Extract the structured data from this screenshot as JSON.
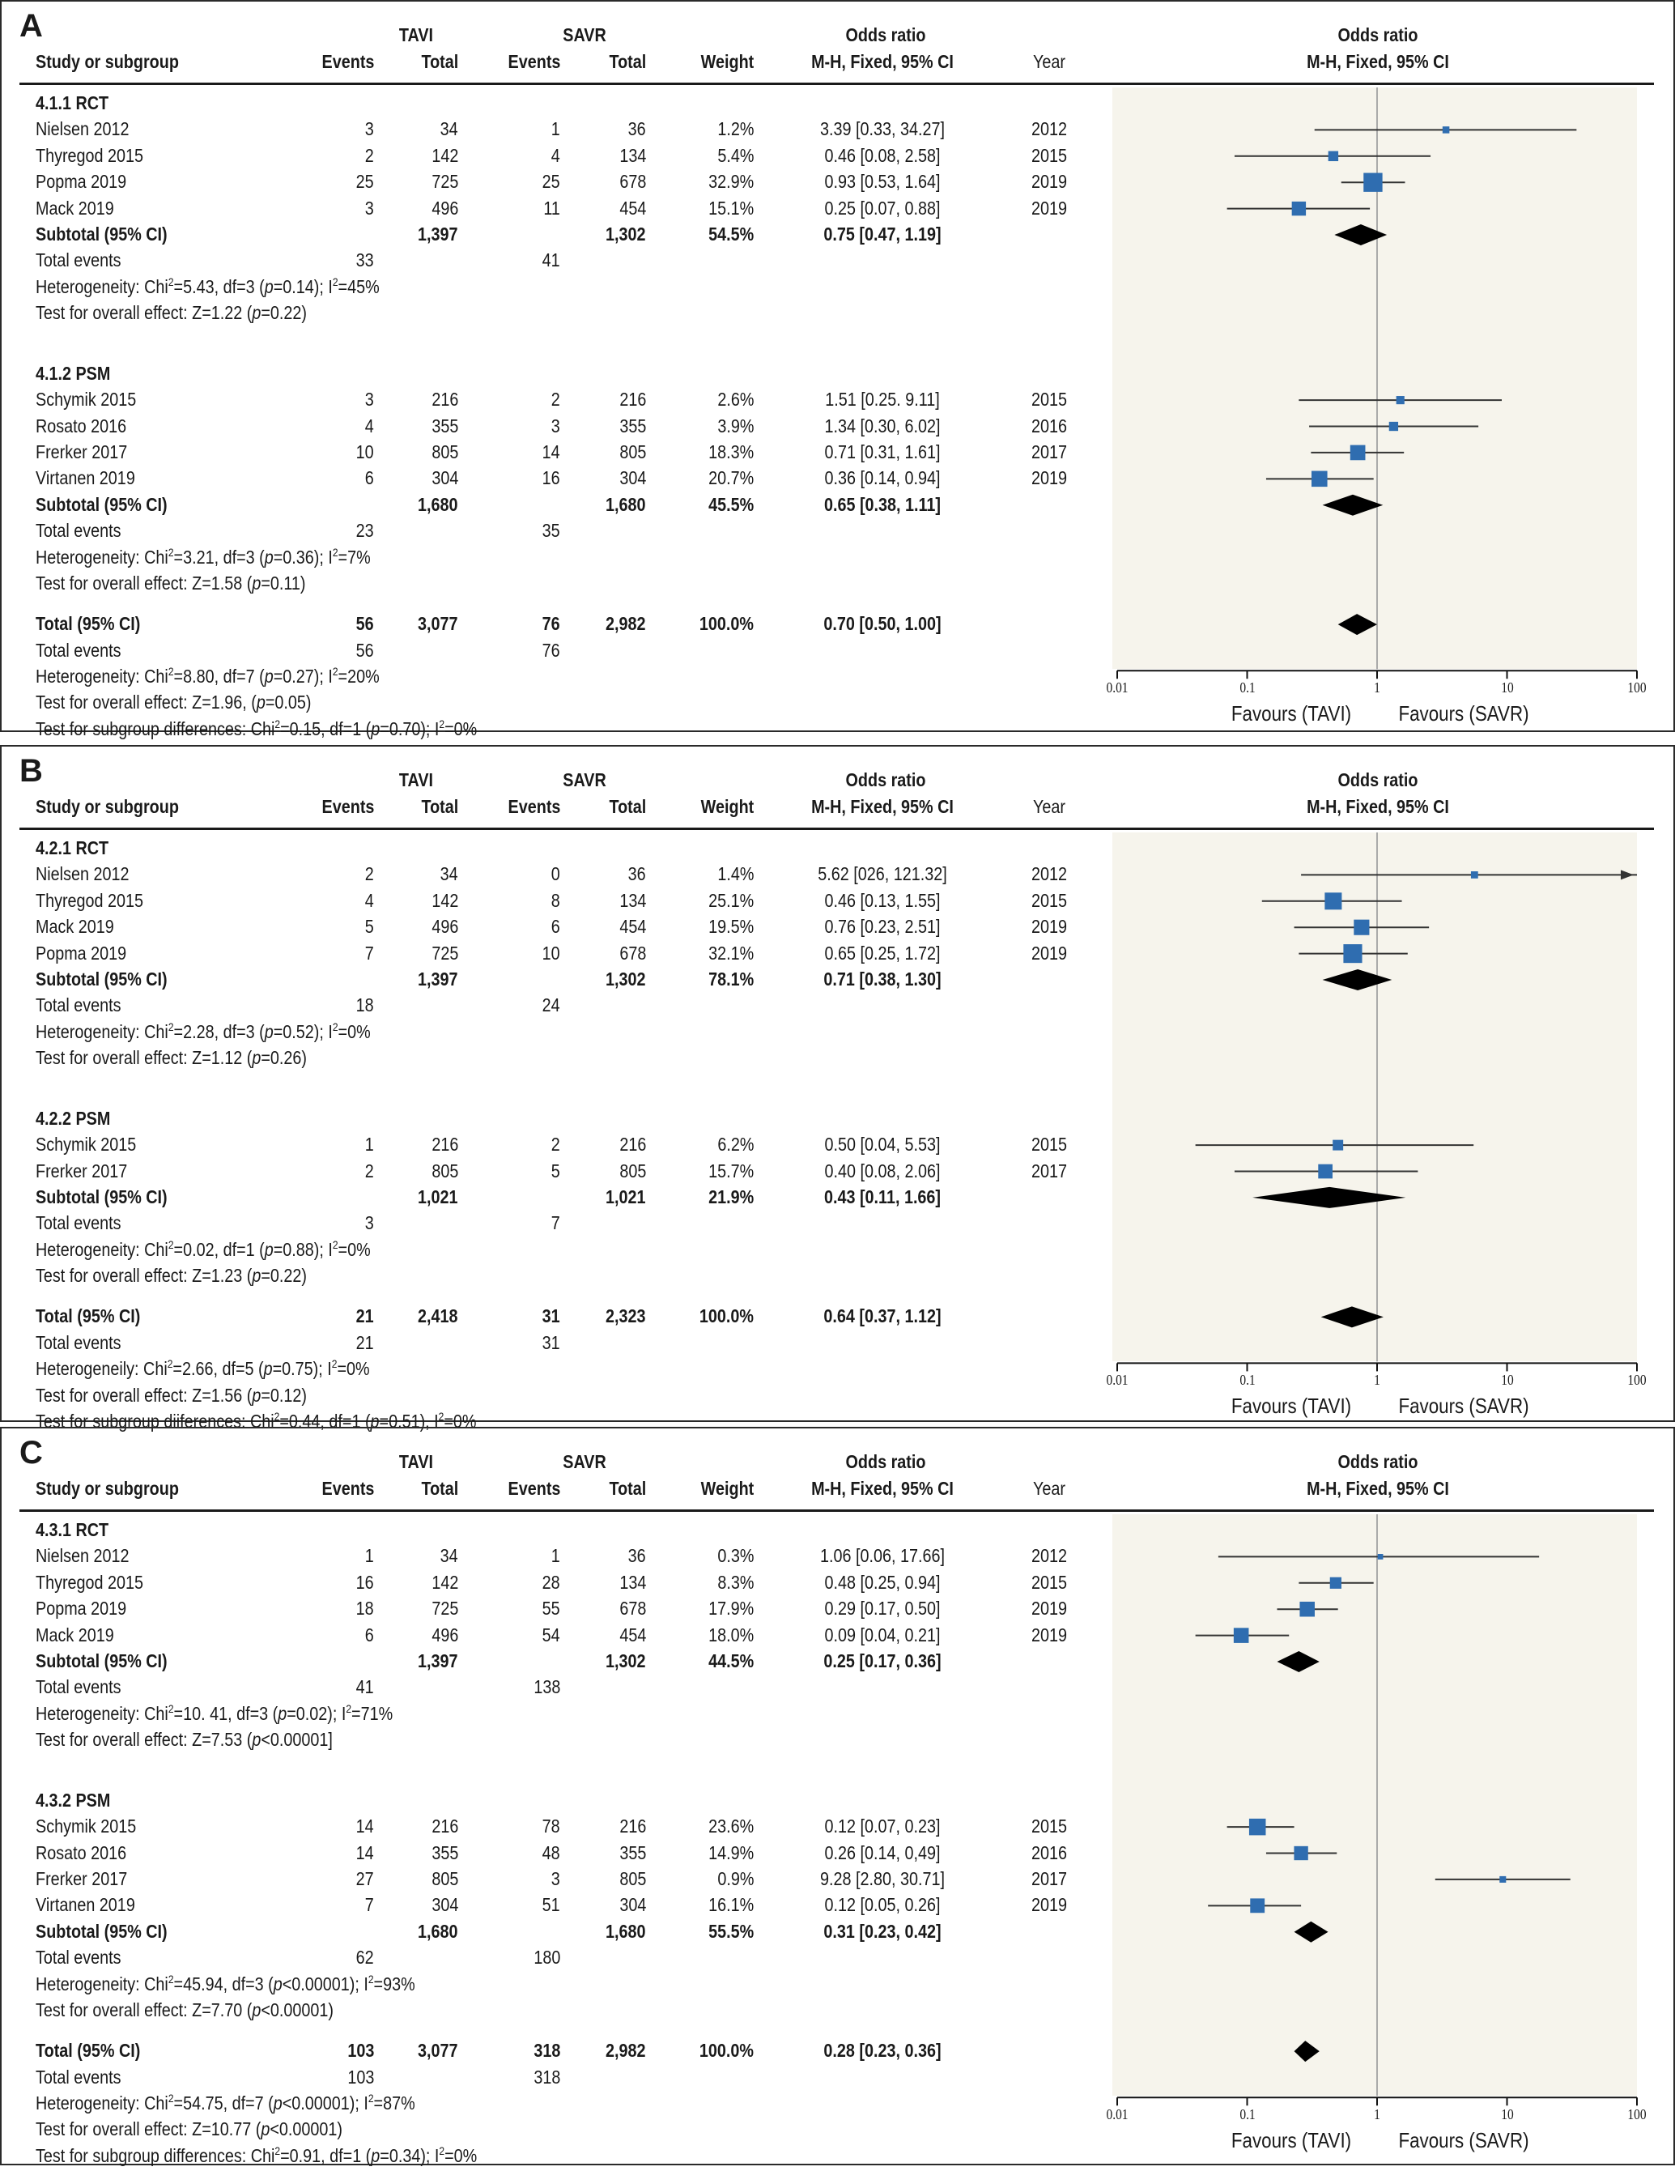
{
  "colors": {
    "square": "#2f6db0",
    "line": "#333333",
    "diamond": "#000000",
    "shade": "#f6f4ec",
    "ref": "#aaaaaa"
  },
  "headers": {
    "study": "Study or subgroup",
    "events": "Events",
    "total": "Total",
    "tavi": "TAVI",
    "savr": "SAVR",
    "weight": "Weight",
    "or1": "Odds ratio",
    "or2": "M-H, Fixed, 95% CI",
    "year": "Year",
    "plot1": "Odds ratio",
    "plot2": "M-H, Fixed, 95% CI"
  },
  "axis": {
    "ticks": [
      "0.01",
      "0.1",
      "1",
      "10",
      "100"
    ],
    "favours_left": "Favours (TAVI)",
    "favours_right": "Favours (SAVR)"
  },
  "chart_data": [
    {
      "type": "forest",
      "panel": "A",
      "xscale": "log",
      "xlim": [
        0.01,
        100
      ],
      "groups": [
        {
          "label": "4.1.1 RCT",
          "studies": [
            {
              "name": "Nielsen 2012",
              "e1": "3",
              "n1": "34",
              "e2": "1",
              "n2": "36",
              "weight": "1.2%",
              "ci": "3.39 [0.33, 34.27]",
              "year": "2012",
              "or": 3.39,
              "lo": 0.33,
              "hi": 34.27,
              "w": 1.2
            },
            {
              "name": "Thyregod 2015",
              "e1": "2",
              "n1": "142",
              "e2": "4",
              "n2": "134",
              "weight": "5.4%",
              "ci": "0.46 [0.08, 2.58]",
              "year": "2015",
              "or": 0.46,
              "lo": 0.08,
              "hi": 2.58,
              "w": 5.4
            },
            {
              "name": "Popma 2019",
              "e1": "25",
              "n1": "725",
              "e2": "25",
              "n2": "678",
              "weight": "32.9%",
              "ci": "0.93 [0.53, 1.64]",
              "year": "2019",
              "or": 0.93,
              "lo": 0.53,
              "hi": 1.64,
              "w": 32.9
            },
            {
              "name": "Mack 2019",
              "e1": "3",
              "n1": "496",
              "e2": "11",
              "n2": "454",
              "weight": "15.1%",
              "ci": "0.25 [0.07, 0.88]",
              "year": "2019",
              "or": 0.25,
              "lo": 0.07,
              "hi": 0.88,
              "w": 15.1
            }
          ],
          "subtotal": {
            "label": "Subtotal (95% CI)",
            "n1": "1,397",
            "n2": "1,302",
            "weight": "54.5%",
            "ci": "0.75 [0.47, 1.19]",
            "or": 0.75,
            "lo": 0.47,
            "hi": 1.19
          },
          "events_label": "Total events",
          "e1": "33",
          "e2": "41",
          "het": [
            "Heterogeneity: Chi",
            "2",
            "=5.43, df=3 (",
            "p",
            "=0.14); I",
            "2",
            "=45%"
          ],
          "test": [
            "Test for overall effect: Z=1.22 (",
            "p",
            "=0.22)"
          ]
        },
        {
          "label": "4.1.2 PSM",
          "studies": [
            {
              "name": "Schymik 2015",
              "e1": "3",
              "n1": "216",
              "e2": "2",
              "n2": "216",
              "weight": "2.6%",
              "ci": "1.51 [0.25. 9.11]",
              "year": "2015",
              "or": 1.51,
              "lo": 0.25,
              "hi": 9.11,
              "w": 2.6
            },
            {
              "name": "Rosato 2016",
              "e1": "4",
              "n1": "355",
              "e2": "3",
              "n2": "355",
              "weight": "3.9%",
              "ci": "1.34 [0.30, 6.02]",
              "year": "2016",
              "or": 1.34,
              "lo": 0.3,
              "hi": 6.02,
              "w": 3.9
            },
            {
              "name": "Frerker 2017",
              "e1": "10",
              "n1": "805",
              "e2": "14",
              "n2": "805",
              "weight": "18.3%",
              "ci": "0.71 [0.31, 1.61]",
              "year": "2017",
              "or": 0.71,
              "lo": 0.31,
              "hi": 1.61,
              "w": 18.3
            },
            {
              "name": "Virtanen 2019",
              "e1": "6",
              "n1": "304",
              "e2": "16",
              "n2": "304",
              "weight": "20.7%",
              "ci": "0.36 [0.14, 0.94]",
              "year": "2019",
              "or": 0.36,
              "lo": 0.14,
              "hi": 0.94,
              "w": 20.7
            }
          ],
          "subtotal": {
            "label": "Subtotal (95% CI)",
            "n1": "1,680",
            "n2": "1,680",
            "weight": "45.5%",
            "ci": "0.65 [0.38, 1.11]",
            "or": 0.65,
            "lo": 0.38,
            "hi": 1.11
          },
          "events_label": "Total events",
          "e1": "23",
          "e2": "35",
          "het": [
            "Heterogeneity: Chi",
            "2",
            "=3.21, df=3 (",
            "p",
            "=0.36); I",
            "2",
            "=7%"
          ],
          "test": [
            "Test for overall effect: Z=1.58 (",
            "p",
            "=0.11)"
          ]
        }
      ],
      "total": {
        "label": "Total (95% CI)",
        "n1": "3,077",
        "n2": "2,982",
        "weight": "100.0%",
        "ci": "0.70 [0.50, 1.00]",
        "or": 0.7,
        "lo": 0.5,
        "hi": 1.0,
        "events_label": "Total events",
        "e1": "56",
        "e2": "76",
        "het": [
          "Heterogeneity: Chi",
          "2",
          "=8.80, df=7 (",
          "p",
          "=0.27); I",
          "2",
          "=20%"
        ],
        "test": [
          "Test for overall effect: Z=1.96, (",
          "p",
          "=0.05)"
        ],
        "sub": [
          "Test for subgroup differences: Chi",
          "2",
          "=0.15, df=1 (",
          "p",
          "=0.70); I",
          "2",
          "=0%"
        ]
      }
    },
    {
      "type": "forest",
      "panel": "B",
      "xscale": "log",
      "xlim": [
        0.01,
        100
      ],
      "groups": [
        {
          "label": "4.2.1 RCT",
          "studies": [
            {
              "name": "Nielsen 2012",
              "e1": "2",
              "n1": "34",
              "e2": "0",
              "n2": "36",
              "weight": "1.4%",
              "ci": "5.62 [026, 121.32]",
              "year": "2012",
              "or": 5.62,
              "lo": 0.26,
              "hi": 121.32,
              "w": 1.4
            },
            {
              "name": "Thyregod 2015",
              "e1": "4",
              "n1": "142",
              "e2": "8",
              "n2": "134",
              "weight": "25.1%",
              "ci": "0.46 [0.13, 1.55]",
              "year": "2015",
              "or": 0.46,
              "lo": 0.13,
              "hi": 1.55,
              "w": 25.1
            },
            {
              "name": "Mack 2019",
              "e1": "5",
              "n1": "496",
              "e2": "6",
              "n2": "454",
              "weight": "19.5%",
              "ci": "0.76 [0.23, 2.51]",
              "year": "2019",
              "or": 0.76,
              "lo": 0.23,
              "hi": 2.51,
              "w": 19.5
            },
            {
              "name": "Popma 2019",
              "e1": "7",
              "n1": "725",
              "e2": "10",
              "n2": "678",
              "weight": "32.1%",
              "ci": "0.65 [0.25, 1.72]",
              "year": "2019",
              "or": 0.65,
              "lo": 0.25,
              "hi": 1.72,
              "w": 32.1
            }
          ],
          "subtotal": {
            "label": "Subtotal (95% CI)",
            "n1": "1,397",
            "n2": "1,302",
            "weight": "78.1%",
            "ci": "0.71 [0.38, 1.30]",
            "or": 0.71,
            "lo": 0.38,
            "hi": 1.3
          },
          "events_label": "Total events",
          "e1": "18",
          "e2": "24",
          "het": [
            "Heterogeneity: Chi",
            "2",
            "=2.28, df=3 (",
            "p",
            "=0.52); I",
            "2",
            "=0%"
          ],
          "test": [
            "Test for overall effect: Z=1.12 (",
            "p",
            "=0.26)"
          ]
        },
        {
          "label": "4.2.2 PSM",
          "studies": [
            {
              "name": "Schymik 2015",
              "e1": "1",
              "n1": "216",
              "e2": "2",
              "n2": "216",
              "weight": "6.2%",
              "ci": "0.50 [0.04, 5.53]",
              "year": "2015",
              "or": 0.5,
              "lo": 0.04,
              "hi": 5.53,
              "w": 6.2
            },
            {
              "name": "Frerker 2017",
              "e1": "2",
              "n1": "805",
              "e2": "5",
              "n2": "805",
              "weight": "15.7%",
              "ci": "0.40 [0.08, 2.06]",
              "year": "2017",
              "or": 0.4,
              "lo": 0.08,
              "hi": 2.06,
              "w": 15.7
            }
          ],
          "subtotal": {
            "label": "Subtotal (95% CI)",
            "n1": "1,021",
            "n2": "1,021",
            "weight": "21.9%",
            "ci": "0.43 [0.11, 1.66]",
            "or": 0.43,
            "lo": 0.11,
            "hi": 1.66
          },
          "events_label": "Total events",
          "e1": "3",
          "e2": "7",
          "het": [
            "Heterogeneity: Chi",
            "2",
            "=0.02, df=1 (",
            "p",
            "=0.88); I",
            "2",
            "=0%"
          ],
          "test": [
            "Test for overall effect: Z=1.23 (",
            "p",
            "=0.22)"
          ]
        }
      ],
      "total": {
        "label": "Total (95% CI)",
        "n1": "2,418",
        "n2": "2,323",
        "weight": "100.0%",
        "ci": "0.64 [0.37, 1.12]",
        "or": 0.64,
        "lo": 0.37,
        "hi": 1.12,
        "events_label": "Total events",
        "e1": "21",
        "e2": "31",
        "het": [
          "Heterogeneily: Chi",
          "2",
          "=2.66, df=5 (",
          "p",
          "=0.75); I",
          "2",
          "=0%"
        ],
        "test": [
          "Test for overall effect: Z=1.56 (",
          "p",
          "=0.12)"
        ],
        "sub": [
          "Test for subgroup diiferences: Chi",
          "2",
          "=0.44, df=1 (",
          "p",
          "=0.51), I",
          "2",
          "=0%"
        ]
      }
    },
    {
      "type": "forest",
      "panel": "C",
      "xscale": "log",
      "xlim": [
        0.01,
        100
      ],
      "groups": [
        {
          "label": "4.3.1 RCT",
          "studies": [
            {
              "name": "Nielsen 2012",
              "e1": "1",
              "n1": "34",
              "e2": "1",
              "n2": "36",
              "weight": "0.3%",
              "ci": "1.06 [0.06, 17.66]",
              "year": "2012",
              "or": 1.06,
              "lo": 0.06,
              "hi": 17.66,
              "w": 0.3
            },
            {
              "name": "Thyregod 2015",
              "e1": "16",
              "n1": "142",
              "e2": "28",
              "n2": "134",
              "weight": "8.3%",
              "ci": "0.48 [0.25, 0.94]",
              "year": "2015",
              "or": 0.48,
              "lo": 0.25,
              "hi": 0.94,
              "w": 8.3
            },
            {
              "name": "Popma 2019",
              "e1": "18",
              "n1": "725",
              "e2": "55",
              "n2": "678",
              "weight": "17.9%",
              "ci": "0.29 [0.17, 0.50]",
              "year": "2019",
              "or": 0.29,
              "lo": 0.17,
              "hi": 0.5,
              "w": 17.9
            },
            {
              "name": "Mack 2019",
              "e1": "6",
              "n1": "496",
              "e2": "54",
              "n2": "454",
              "weight": "18.0%",
              "ci": "0.09 [0.04, 0.21]",
              "year": "2019",
              "or": 0.09,
              "lo": 0.04,
              "hi": 0.21,
              "w": 18.0
            }
          ],
          "subtotal": {
            "label": "Subtotal (95% CI)",
            "n1": "1,397",
            "n2": "1,302",
            "weight": "44.5%",
            "ci": "0.25 [0.17, 0.36]",
            "or": 0.25,
            "lo": 0.17,
            "hi": 0.36
          },
          "events_label": "Total events",
          "e1": "41",
          "e2": "138",
          "het": [
            "Heterogeneity: Chi",
            "2",
            "=10. 41, df=3 (",
            "p",
            "=0.02); I",
            "2",
            "=71%"
          ],
          "test": [
            "Test for overall effect: Z=7.53 (",
            "p",
            "<0.00001]"
          ]
        },
        {
          "label": "4.3.2 PSM",
          "studies": [
            {
              "name": "Schymik 2015",
              "e1": "14",
              "n1": "216",
              "e2": "78",
              "n2": "216",
              "weight": "23.6%",
              "ci": "0.12 [0.07, 0.23]",
              "year": "2015",
              "or": 0.12,
              "lo": 0.07,
              "hi": 0.23,
              "w": 23.6
            },
            {
              "name": "Rosato 2016",
              "e1": "14",
              "n1": "355",
              "e2": "48",
              "n2": "355",
              "weight": "14.9%",
              "ci": "0.26 [0.14, 0,49]",
              "year": "2016",
              "or": 0.26,
              "lo": 0.14,
              "hi": 0.49,
              "w": 14.9
            },
            {
              "name": "Frerker 2017",
              "e1": "27",
              "n1": "805",
              "e2": "3",
              "n2": "805",
              "weight": "0.9%",
              "ci": "9.28 [2.80, 30.71]",
              "year": "2017",
              "or": 9.28,
              "lo": 2.8,
              "hi": 30.71,
              "w": 0.9
            },
            {
              "name": "Virtanen 2019",
              "e1": "7",
              "n1": "304",
              "e2": "51",
              "n2": "304",
              "weight": "16.1%",
              "ci": "0.12 [0.05, 0.26]",
              "year": "2019",
              "or": 0.12,
              "lo": 0.05,
              "hi": 0.26,
              "w": 16.1
            }
          ],
          "subtotal": {
            "label": "Subtotal (95% CI)",
            "n1": "1,680",
            "n2": "1,680",
            "weight": "55.5%",
            "ci": "0.31 [0.23, 0.42]",
            "or": 0.31,
            "lo": 0.23,
            "hi": 0.42
          },
          "events_label": "Total events",
          "e1": "62",
          "e2": "180",
          "het": [
            "Heterogeneity: Chi",
            "2",
            "=45.94, df=3 (",
            "p",
            "<0.00001); I",
            "2",
            "=93%"
          ],
          "test": [
            "Test for overall effect: Z=7.70 (",
            "p",
            "<0.00001)"
          ]
        }
      ],
      "total": {
        "label": "Total (95% CI)",
        "n1": "3,077",
        "n2": "2,982",
        "weight": "100.0%",
        "ci": "0.28 [0.23, 0.36]",
        "or": 0.28,
        "lo": 0.23,
        "hi": 0.36,
        "events_label": "Total events",
        "e1": "103",
        "e2": "318",
        "het": [
          "Heterogeneity: Chi",
          "2",
          "=54.75, df=7 (",
          "p",
          "<0.00001); I",
          "2",
          "=87%"
        ],
        "test": [
          "Test for overall effect: Z=10.77 (",
          "p",
          "<0.00001)"
        ],
        "sub": [
          "Test for subgroup differences: Chi",
          "2",
          "=0.91, df=1 (",
          "p",
          "=0.34); I",
          "2",
          "=0%"
        ]
      }
    }
  ]
}
